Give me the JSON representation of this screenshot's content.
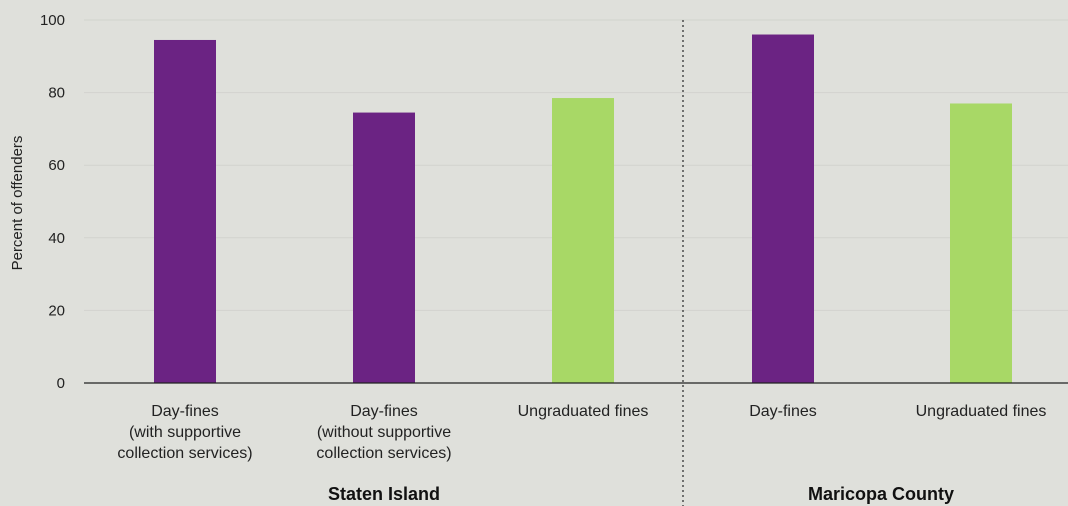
{
  "chart_data": {
    "type": "bar",
    "ylabel": "Percent of offenders",
    "ylim": [
      0,
      100
    ],
    "yticks": [
      0,
      20,
      40,
      60,
      80,
      100
    ],
    "grid": true,
    "groups": [
      {
        "name": "Staten Island",
        "categories": [
          {
            "lines": [
              "Day-fines",
              "(with supportive",
              "collection services)"
            ],
            "value": 94.5,
            "color": "#6b2383"
          },
          {
            "lines": [
              "Day-fines",
              "(without supportive",
              "collection services)"
            ],
            "value": 74.5,
            "color": "#6b2383"
          },
          {
            "lines": [
              "Ungraduated fines"
            ],
            "value": 78.5,
            "color": "#a8d866"
          }
        ]
      },
      {
        "name": "Maricopa County",
        "categories": [
          {
            "lines": [
              "Day-fines"
            ],
            "value": 96,
            "color": "#6b2383"
          },
          {
            "lines": [
              "Ungraduated fines"
            ],
            "value": 77,
            "color": "#a8d866"
          }
        ]
      }
    ]
  }
}
